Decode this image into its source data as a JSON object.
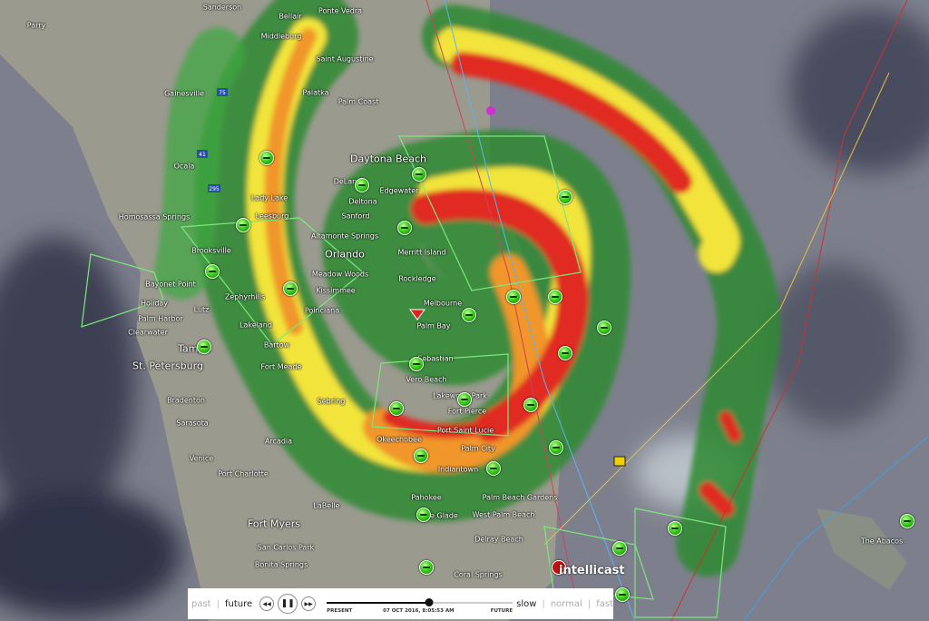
{
  "controls": {
    "past": "past",
    "future": "future",
    "rewind_icon": "rewind-icon",
    "pause_icon": "pause-icon",
    "forward_icon": "fast-forward-icon",
    "present": "PRESENT",
    "timestamp": "07 OCT 2016, 8:05:53 AM",
    "future_end": "FUTURE",
    "timeline_progress": 0.55,
    "slow": "slow",
    "normal": "normal",
    "fast": "fast"
  },
  "logo": "intellicast",
  "colors": {
    "green": "#3aa63a",
    "yellow": "#f2e43a",
    "orange": "#f0962a",
    "red": "#e02a22",
    "magenta": "#d030d0",
    "background": "#7d808c"
  },
  "cities": [
    {
      "name": "Sanderson"
    },
    {
      "name": "Bellair"
    },
    {
      "name": "Ponte Vedra"
    },
    {
      "name": "Middleburg"
    },
    {
      "name": "Saint Augustine"
    },
    {
      "name": "Palatka"
    },
    {
      "name": "Palm Coast"
    },
    {
      "name": "Gainesville"
    },
    {
      "name": "Ocala"
    },
    {
      "name": "Daytona Beach"
    },
    {
      "name": "DeLand"
    },
    {
      "name": "Edgewater"
    },
    {
      "name": "Lady Lake"
    },
    {
      "name": "Deltona"
    },
    {
      "name": "Leesburg"
    },
    {
      "name": "Sanford"
    },
    {
      "name": "Homosassa Springs"
    },
    {
      "name": "Altamonte Springs"
    },
    {
      "name": "Brooksville"
    },
    {
      "name": "Merritt Island"
    },
    {
      "name": "Orlando"
    },
    {
      "name": "Meadow Woods"
    },
    {
      "name": "Bayonet Point"
    },
    {
      "name": "Kissimmee"
    },
    {
      "name": "Rockledge"
    },
    {
      "name": "Zephyrhills"
    },
    {
      "name": "Holiday"
    },
    {
      "name": "Lutz"
    },
    {
      "name": "Palm Harbor"
    },
    {
      "name": "Poinciana"
    },
    {
      "name": "Melbourne"
    },
    {
      "name": "Palm Bay"
    },
    {
      "name": "Clearwater"
    },
    {
      "name": "Lakeland"
    },
    {
      "name": "Tampa"
    },
    {
      "name": "St. Petersburg"
    },
    {
      "name": "Bartow"
    },
    {
      "name": "Fort Meade"
    },
    {
      "name": "Sebastian"
    },
    {
      "name": "Vero Beach"
    },
    {
      "name": "Lakewood Park"
    },
    {
      "name": "Fort Pierce"
    },
    {
      "name": "Bradenton"
    },
    {
      "name": "Sebring"
    },
    {
      "name": "Sarasota"
    },
    {
      "name": "Port Saint Lucie"
    },
    {
      "name": "Okeechobee"
    },
    {
      "name": "Arcadia"
    },
    {
      "name": "Palm City"
    },
    {
      "name": "Venice"
    },
    {
      "name": "Port Charlotte"
    },
    {
      "name": "Indiantown"
    },
    {
      "name": "LaBelle"
    },
    {
      "name": "Pahokee"
    },
    {
      "name": "Palm Beach Gardens"
    },
    {
      "name": "Fort Myers"
    },
    {
      "name": "West Palm Beach"
    },
    {
      "name": "Belle Glade"
    },
    {
      "name": "San Carlos Park"
    },
    {
      "name": "Delray Beach"
    },
    {
      "name": "Bonita Springs"
    },
    {
      "name": "Coral Springs"
    },
    {
      "name": "The Abacos"
    },
    {
      "name": "Parry"
    }
  ],
  "highways": [
    "75",
    "41",
    "295"
  ]
}
